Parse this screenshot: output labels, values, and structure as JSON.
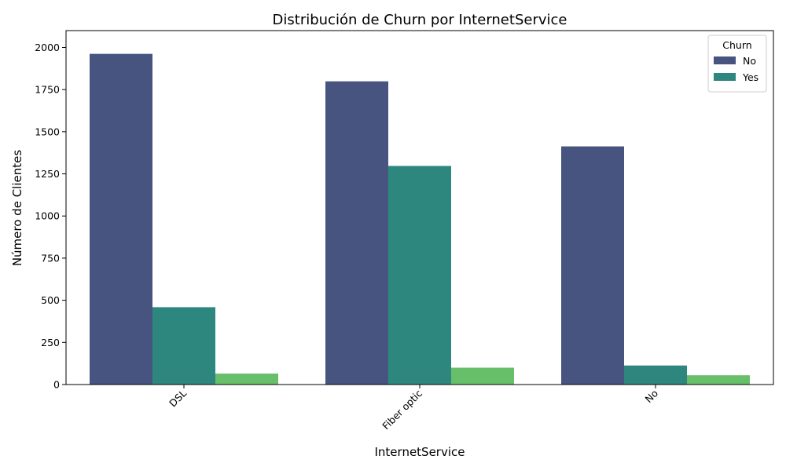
{
  "chart_data": {
    "type": "bar",
    "title": "Distribución de Churn por InternetService",
    "xlabel": "InternetService",
    "ylabel": "Número de Clientes",
    "categories": [
      "DSL",
      "Fiber optic",
      "No"
    ],
    "series": [
      {
        "name": "No",
        "color": "#46547f",
        "values": [
          1962,
          1799,
          1413
        ]
      },
      {
        "name": "Yes",
        "color": "#2e877f",
        "values": [
          459,
          1297,
          113
        ]
      },
      {
        "color": "#67bf6a",
        "values": [
          65,
          100,
          55
        ]
      }
    ],
    "ylim": [
      0,
      2100
    ],
    "yticks": [
      0,
      250,
      500,
      750,
      1000,
      1250,
      1500,
      1750,
      2000
    ],
    "xtick_rotation": 45,
    "grid": false,
    "legend": {
      "title": "Churn",
      "position": "top-right",
      "entries": [
        "No",
        "Yes"
      ]
    }
  }
}
